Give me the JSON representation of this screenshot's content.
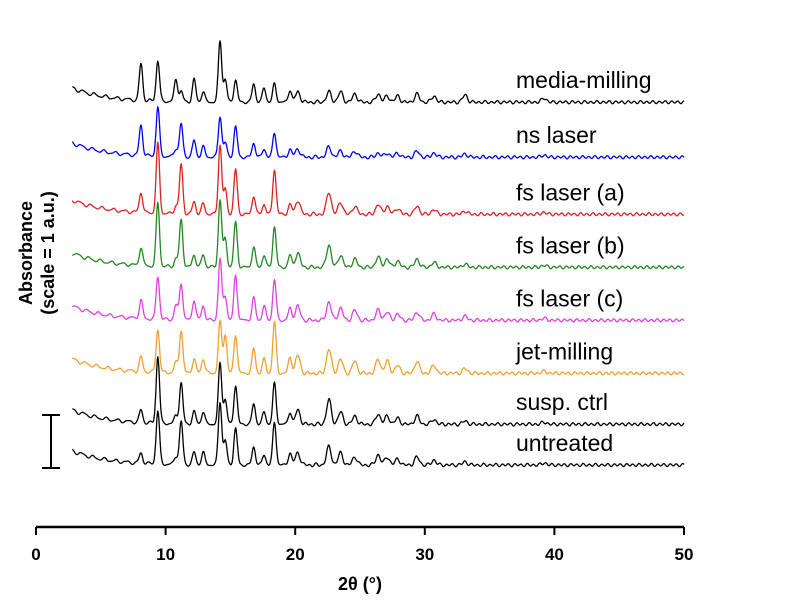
{
  "chart_data": {
    "type": "line",
    "xlabel": "2θ (°)",
    "ylabel": "Absorbance",
    "ylabel_line2": "(scale = 1 a.u.)",
    "xlim": [
      0,
      50
    ],
    "x_ticks": [
      "0",
      "10",
      "20",
      "30",
      "40",
      "50"
    ],
    "x_range_data": [
      2.8,
      50
    ],
    "scale_bar_value": 1,
    "grid": false,
    "peaks_2theta": [
      8.1,
      9.4,
      10.8,
      11.2,
      12.2,
      12.9,
      14.2,
      14.6,
      15.4,
      16.8,
      17.6,
      18.4,
      19.6,
      20.2,
      22.6,
      23.5,
      24.6,
      26.4,
      27.1,
      27.9,
      29.4,
      30.7,
      33.1,
      39.2
    ],
    "series": [
      {
        "name": "media-milling",
        "color": "#000000",
        "offset": 8.9,
        "intensities": [
          0.9,
          1.0,
          0.55,
          0.25,
          0.55,
          0.25,
          1.5,
          0.55,
          0.55,
          0.45,
          0.35,
          0.45,
          0.3,
          0.25,
          0.25,
          0.25,
          0.2,
          0.2,
          0.15,
          0.15,
          0.2,
          0.15,
          0.18,
          0.1
        ]
      },
      {
        "name": "ns laser",
        "color": "#0000ff",
        "offset": 7.55,
        "intensities": [
          0.75,
          1.2,
          0.2,
          0.8,
          0.4,
          0.25,
          1.0,
          0.35,
          0.75,
          0.35,
          0.2,
          0.6,
          0.2,
          0.2,
          0.25,
          0.15,
          0.15,
          0.1,
          0.1,
          0.1,
          0.15,
          0.1,
          0.08,
          0.05
        ]
      },
      {
        "name": "fs laser (a)",
        "color": "#dd2222",
        "offset": 6.15,
        "intensities": [
          0.5,
          1.7,
          0.2,
          1.2,
          0.3,
          0.25,
          1.7,
          0.6,
          1.1,
          0.45,
          0.25,
          1.1,
          0.25,
          0.35,
          0.55,
          0.3,
          0.2,
          0.25,
          0.2,
          0.15,
          0.2,
          0.12,
          0.08,
          0.05
        ]
      },
      {
        "name": "fs laser (b)",
        "color": "#228822",
        "offset": 4.85,
        "intensities": [
          0.45,
          1.55,
          0.2,
          1.15,
          0.3,
          0.3,
          1.65,
          0.7,
          1.1,
          0.5,
          0.3,
          1.0,
          0.3,
          0.35,
          0.55,
          0.3,
          0.2,
          0.25,
          0.2,
          0.15,
          0.2,
          0.12,
          0.08,
          0.05
        ]
      },
      {
        "name": "fs laser (c)",
        "color": "#e040e0",
        "offset": 3.55,
        "intensities": [
          0.45,
          1.05,
          0.35,
          0.9,
          0.5,
          0.35,
          1.5,
          0.6,
          1.1,
          0.55,
          0.35,
          1.0,
          0.3,
          0.35,
          0.45,
          0.3,
          0.25,
          0.25,
          0.2,
          0.15,
          0.2,
          0.15,
          0.1,
          0.05
        ]
      },
      {
        "name": "jet-milling",
        "color": "#f0a030",
        "offset": 2.25,
        "intensities": [
          0.35,
          1.05,
          0.25,
          1.05,
          0.35,
          0.35,
          1.25,
          0.95,
          0.95,
          0.6,
          0.35,
          1.25,
          0.4,
          0.45,
          0.6,
          0.35,
          0.3,
          0.35,
          0.3,
          0.2,
          0.3,
          0.2,
          0.12,
          0.05
        ]
      },
      {
        "name": "susp. ctrl",
        "color": "#000000",
        "offset": 1.0,
        "intensities": [
          0.3,
          1.65,
          0.2,
          1.0,
          0.3,
          0.3,
          1.5,
          0.6,
          0.95,
          0.5,
          0.3,
          1.0,
          0.3,
          0.35,
          0.6,
          0.3,
          0.2,
          0.25,
          0.2,
          0.15,
          0.2,
          0.12,
          0.08,
          0.05
        ]
      },
      {
        "name": "untreated",
        "color": "#000000",
        "offset": 0.0,
        "intensities": [
          0.25,
          1.3,
          0.2,
          1.05,
          0.3,
          0.3,
          1.55,
          0.6,
          0.9,
          0.45,
          0.25,
          1.05,
          0.3,
          0.3,
          0.45,
          0.3,
          0.2,
          0.25,
          0.2,
          0.15,
          0.2,
          0.12,
          0.08,
          0.05
        ]
      }
    ]
  }
}
